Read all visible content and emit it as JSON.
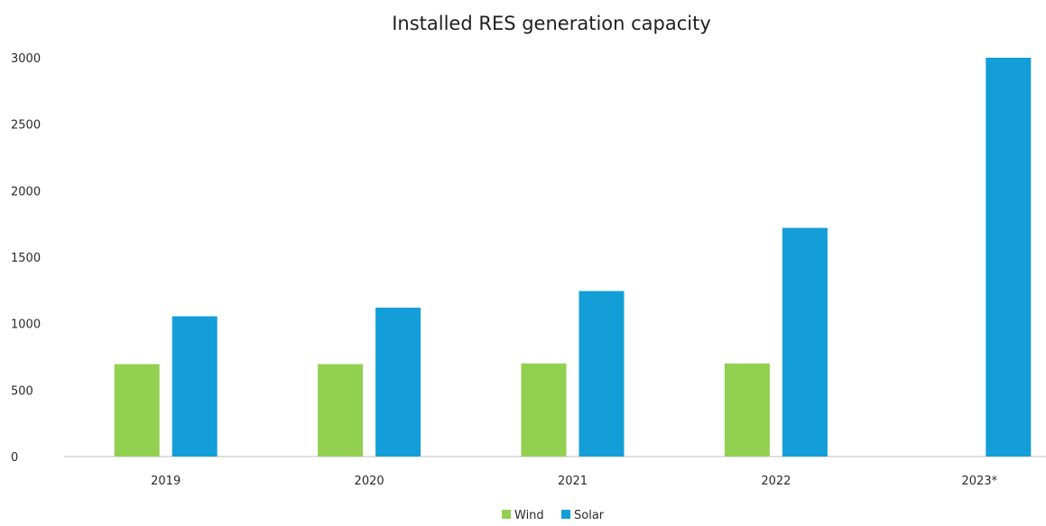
{
  "chart_data": {
    "type": "bar",
    "title": "Installed RES generation capacity",
    "xlabel": "",
    "ylabel": "",
    "categories": [
      "2019",
      "2020",
      "2021",
      "2022",
      "2023*"
    ],
    "series": [
      {
        "name": "Wind",
        "color": "#92D050",
        "values": [
          695,
          695,
          700,
          700,
          null
        ]
      },
      {
        "name": "Solar",
        "color": "#139ED7",
        "values": [
          1055,
          1120,
          1245,
          1720,
          3000
        ]
      }
    ],
    "ylim": [
      0,
      3000
    ],
    "yticks": [
      0,
      500,
      1000,
      1500,
      2000,
      2500,
      3000
    ],
    "grid": false,
    "legend": "bottom-center"
  }
}
